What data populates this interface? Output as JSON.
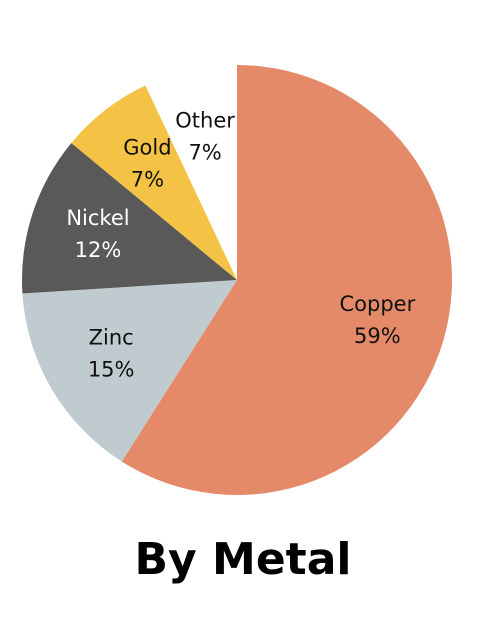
{
  "chart_data": {
    "type": "pie",
    "title": "By Metal",
    "categories": [
      "Copper",
      "Zinc",
      "Nickel",
      "Gold",
      "Other"
    ],
    "values": [
      59,
      15,
      12,
      7,
      7
    ],
    "value_labels": [
      "59%",
      "15%",
      "12%",
      "7%",
      "7%"
    ],
    "colors": [
      "#e48a68",
      "#c0cbcf",
      "#595959",
      "#f4c244",
      "#ffffff"
    ]
  }
}
